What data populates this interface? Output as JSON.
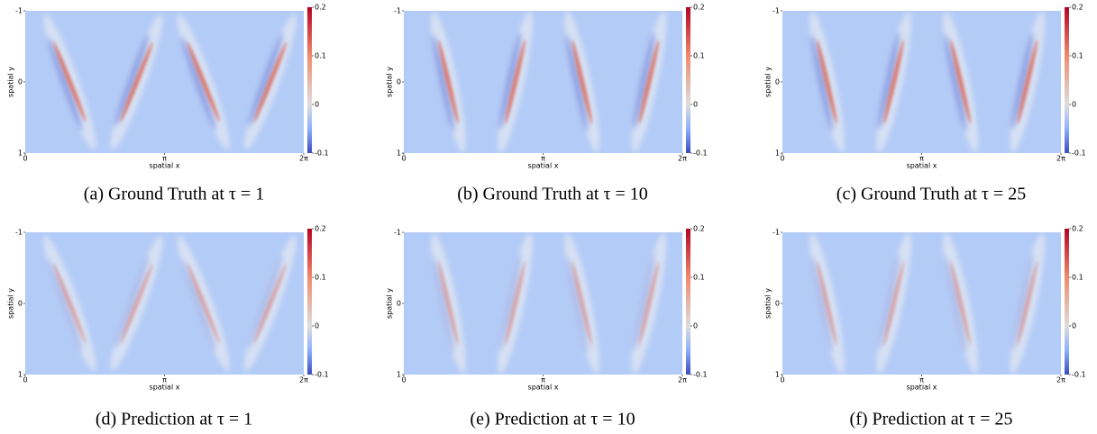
{
  "figure": {
    "panels": [
      {
        "caption": "(a) Ground Truth at τ = 1",
        "xlabel": "spatial x",
        "ylabel": "spatial y",
        "xlim": [
          0,
          6.28319
        ],
        "xticks": [
          0,
          {
            "value": 3.14159,
            "label": "π"
          },
          {
            "value": 6.28319,
            "label": "2π"
          }
        ],
        "ylim": [
          -1,
          1
        ],
        "yticks": [
          -1,
          0,
          1
        ],
        "clim": [
          -0.1,
          0.2
        ],
        "cticks": [
          -0.1,
          0,
          0.1,
          0.2
        ]
      },
      {
        "caption": "(b) Ground Truth at τ = 10",
        "xlabel": "spatial x",
        "ylabel": "spatial y",
        "xlim": [
          0,
          6.28319
        ],
        "xticks": [
          0,
          {
            "value": 3.14159,
            "label": "π"
          },
          {
            "value": 6.28319,
            "label": "2π"
          }
        ],
        "ylim": [
          -1,
          1
        ],
        "yticks": [
          -1,
          0,
          1
        ],
        "clim": [
          -0.1,
          0.2
        ],
        "cticks": [
          -0.1,
          0,
          0.1,
          0.2
        ]
      },
      {
        "caption": "(c) Ground Truth at τ = 25",
        "xlabel": "spatial x",
        "ylabel": "spatial y",
        "xlim": [
          0,
          6.28319
        ],
        "xticks": [
          0,
          {
            "value": 3.14159,
            "label": "π"
          },
          {
            "value": 6.28319,
            "label": "2π"
          }
        ],
        "ylim": [
          -1,
          1
        ],
        "yticks": [
          -1,
          0,
          1
        ],
        "clim": [
          -0.1,
          0.2
        ],
        "cticks": [
          -0.1,
          0,
          0.1,
          0.2
        ]
      },
      {
        "caption": "(d) Prediction at τ = 1",
        "xlabel": "spatial x",
        "ylabel": "spatial y",
        "xlim": [
          0,
          6.28319
        ],
        "xticks": [
          0,
          {
            "value": 3.14159,
            "label": "π"
          },
          {
            "value": 6.28319,
            "label": "2π"
          }
        ],
        "ylim": [
          -1,
          1
        ],
        "yticks": [
          -1,
          0,
          1
        ],
        "clim": [
          -0.1,
          0.2
        ],
        "cticks": [
          -0.1,
          0,
          0.1,
          0.2
        ]
      },
      {
        "caption": "(e) Prediction at τ = 10",
        "xlabel": "spatial x",
        "ylabel": "spatial y",
        "xlim": [
          0,
          6.28319
        ],
        "xticks": [
          0,
          {
            "value": 3.14159,
            "label": "π"
          },
          {
            "value": 6.28319,
            "label": "2π"
          }
        ],
        "ylim": [
          -1,
          1
        ],
        "yticks": [
          -1,
          0,
          1
        ],
        "clim": [
          -0.1,
          0.2
        ],
        "cticks": [
          -0.1,
          0,
          0.1,
          0.2
        ]
      },
      {
        "caption": "(f) Prediction at τ = 25",
        "xlabel": "spatial x",
        "ylabel": "spatial y",
        "xlim": [
          0,
          6.28319
        ],
        "xticks": [
          0,
          {
            "value": 3.14159,
            "label": "π"
          },
          {
            "value": 6.28319,
            "label": "2π"
          }
        ],
        "ylim": [
          -1,
          1
        ],
        "yticks": [
          -1,
          0,
          1
        ],
        "clim": [
          -0.1,
          0.2
        ],
        "cticks": [
          -0.1,
          0,
          0.1,
          0.2
        ]
      }
    ]
  }
}
